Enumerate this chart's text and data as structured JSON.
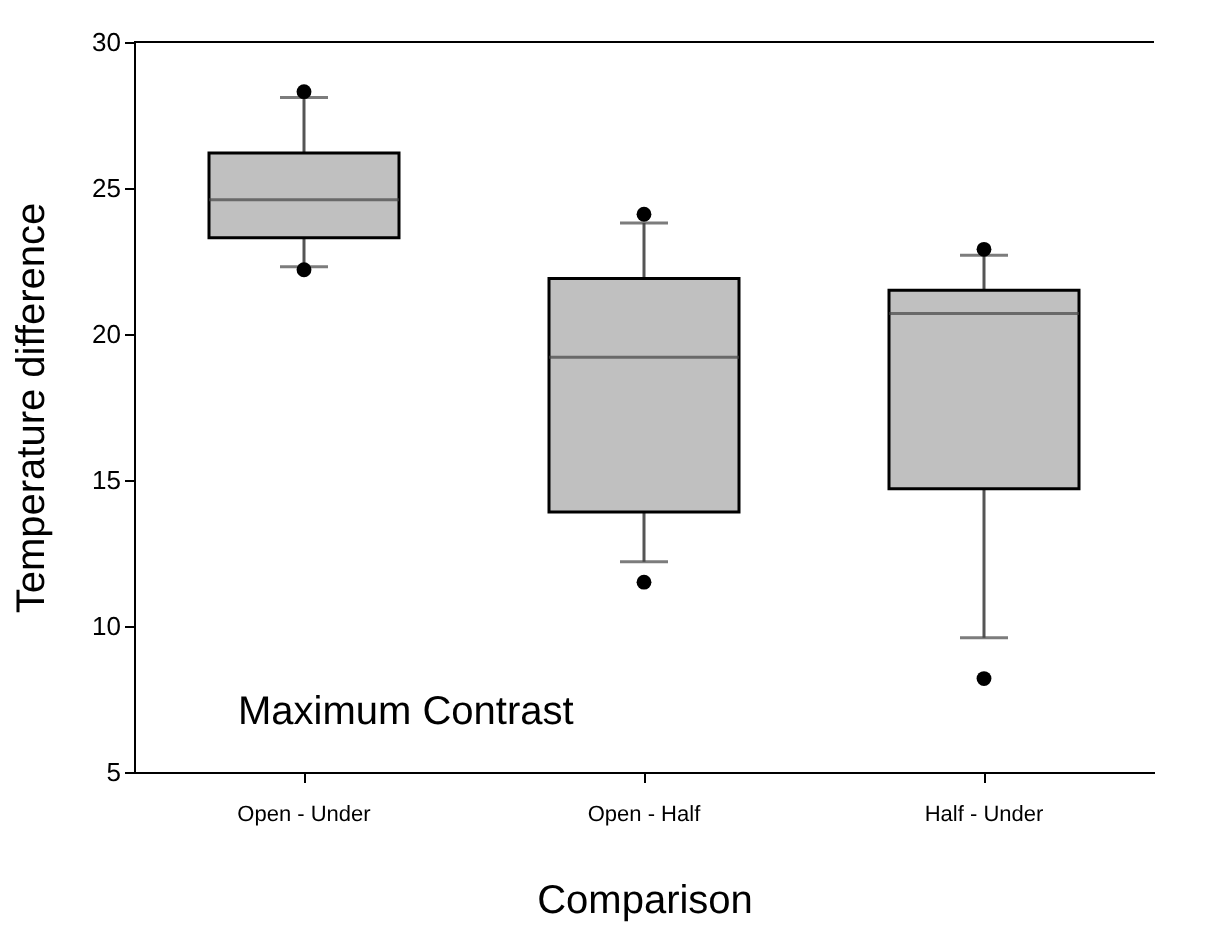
{
  "chart_data": {
    "type": "box",
    "xlabel": "Comparison",
    "ylabel": "Temperature difference",
    "categories": [
      "Open - Under",
      "Open - Half",
      "Half - Under"
    ],
    "boxes": [
      {
        "low": 22.3,
        "q1": 23.3,
        "median": 24.6,
        "q3": 26.2,
        "high": 28.1,
        "outliers": [
          28.3,
          22.2
        ]
      },
      {
        "low": 12.2,
        "q1": 13.9,
        "median": 19.2,
        "q3": 21.9,
        "high": 23.8,
        "outliers": [
          24.1,
          11.5
        ]
      },
      {
        "low": 9.6,
        "q1": 14.7,
        "median": 20.7,
        "q3": 21.5,
        "high": 22.7,
        "outliers": [
          22.9,
          8.2
        ]
      }
    ],
    "color": "#c0c0c0",
    "ylim": [
      5,
      30
    ],
    "yticks": [
      5,
      10,
      15,
      20,
      25,
      30
    ],
    "grid": false,
    "annotations": [
      "Maximum Contrast"
    ]
  }
}
